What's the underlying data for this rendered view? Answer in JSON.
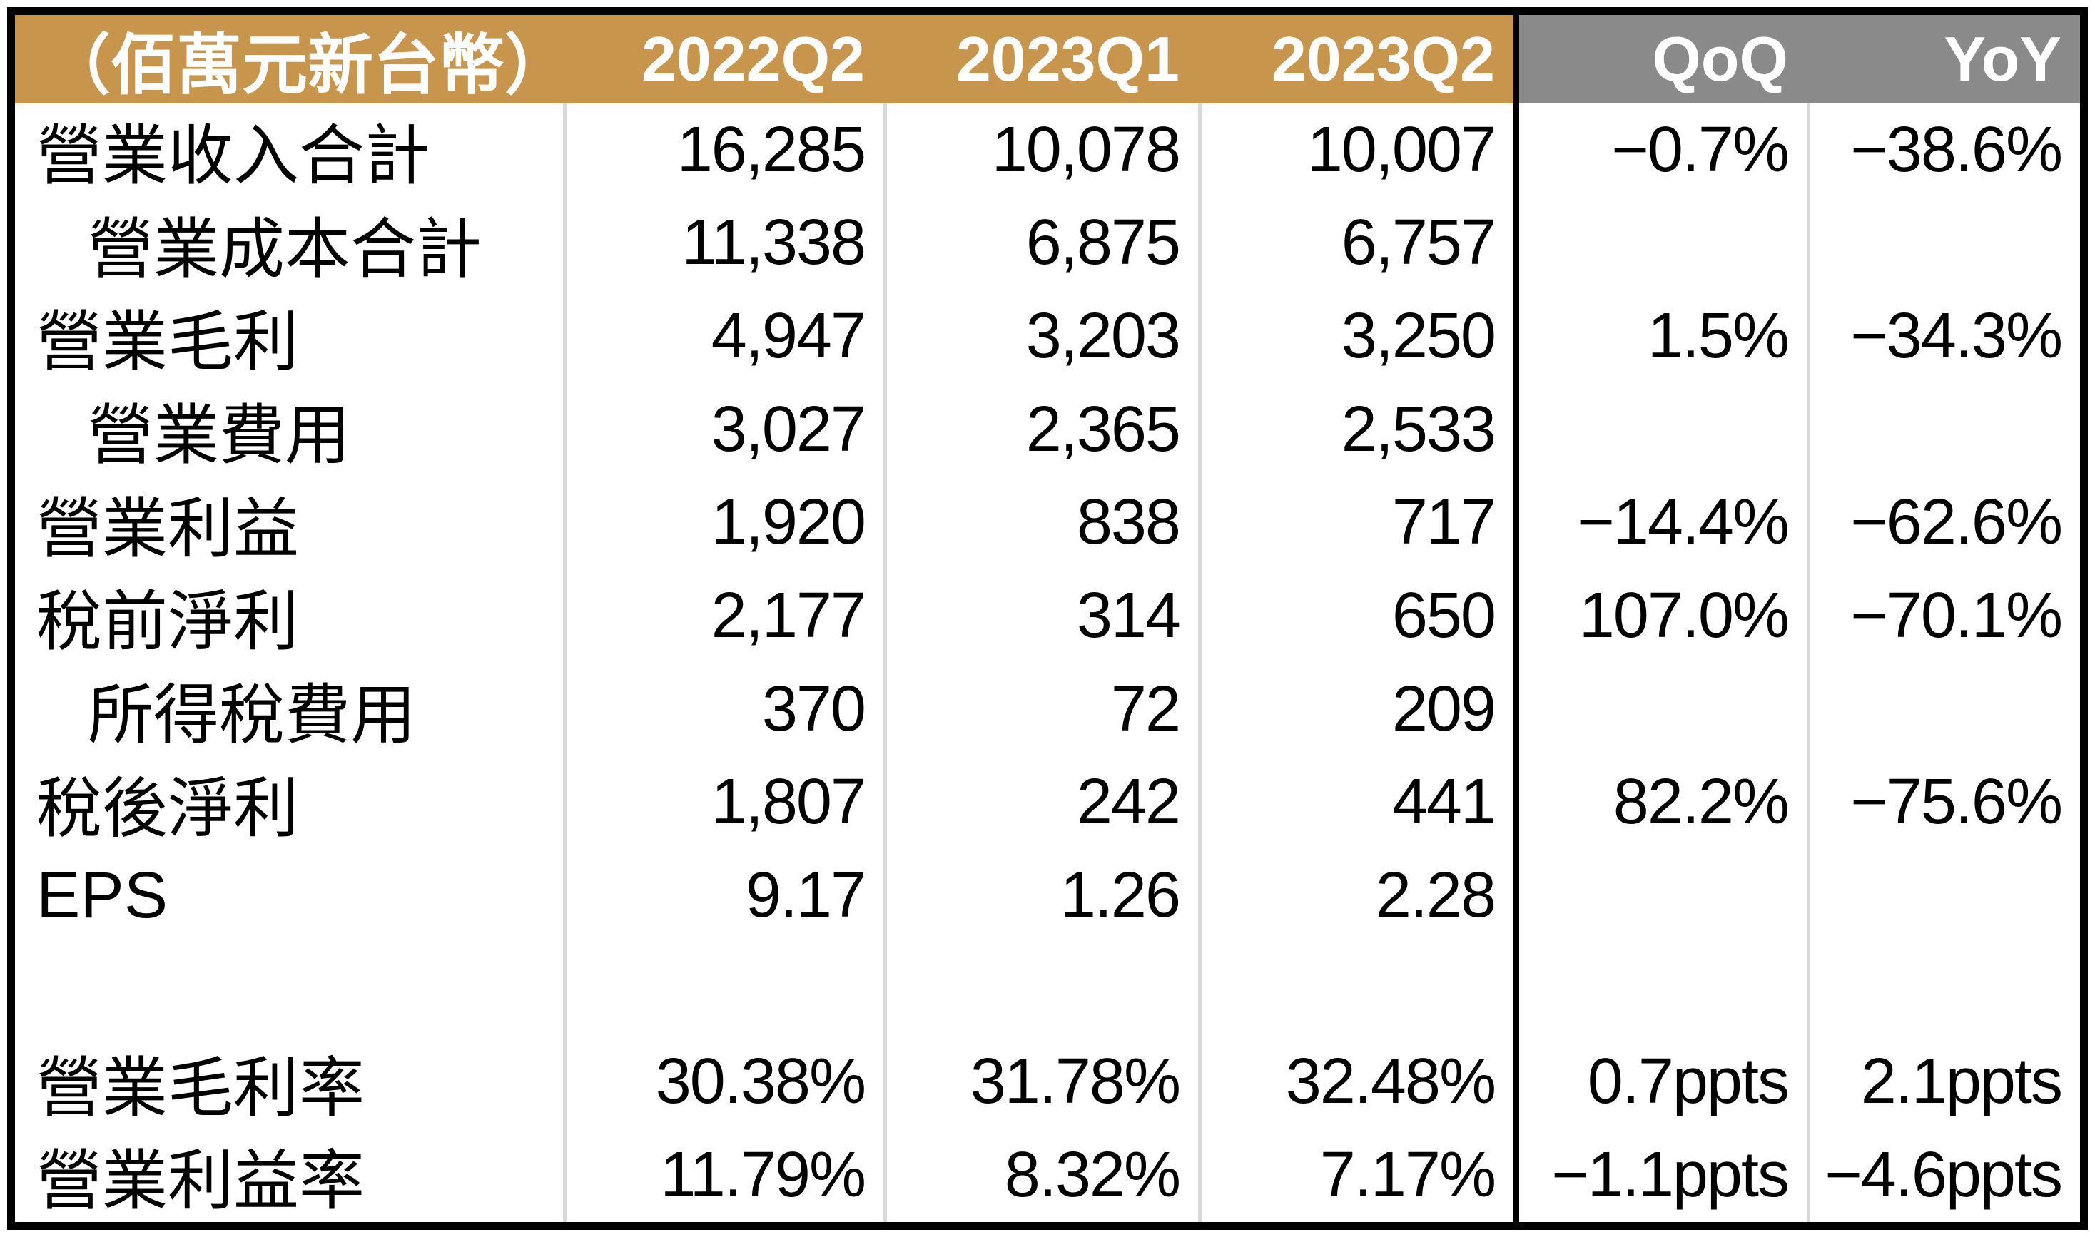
{
  "colors": {
    "header_gold": "#C8954D",
    "header_gray": "#8A8A8A",
    "divider": "#D9D9D9",
    "border": "#000000",
    "header_text": "#FFFFFF",
    "body_text": "#000000",
    "background": "#FFFFFF"
  },
  "chart_data": {
    "type": "table",
    "unit_label": "（佰萬元新台幣）",
    "columns": [
      "2022Q2",
      "2023Q1",
      "2023Q2",
      "QoQ",
      "YoY"
    ],
    "rows": [
      {
        "label": "營業收入合計",
        "indent": false,
        "values": [
          "16,285",
          "10,078",
          "10,007",
          "−0.7%",
          "−38.6%"
        ]
      },
      {
        "label": "營業成本合計",
        "indent": true,
        "values": [
          "11,338",
          "6,875",
          "6,757",
          "",
          ""
        ]
      },
      {
        "label": "營業毛利",
        "indent": false,
        "values": [
          "4,947",
          "3,203",
          "3,250",
          "1.5%",
          "−34.3%"
        ]
      },
      {
        "label": "營業費用",
        "indent": true,
        "values": [
          "3,027",
          "2,365",
          "2,533",
          "",
          ""
        ]
      },
      {
        "label": "營業利益",
        "indent": false,
        "values": [
          "1,920",
          "838",
          "717",
          "−14.4%",
          "−62.6%"
        ]
      },
      {
        "label": "稅前淨利",
        "indent": false,
        "values": [
          "2,177",
          "314",
          "650",
          "107.0%",
          "−70.1%"
        ]
      },
      {
        "label": "所得稅費用",
        "indent": true,
        "values": [
          "370",
          "72",
          "209",
          "",
          ""
        ]
      },
      {
        "label": "稅後淨利",
        "indent": false,
        "values": [
          "1,807",
          "242",
          "441",
          "82.2%",
          "−75.6%"
        ]
      },
      {
        "label": "EPS",
        "indent": false,
        "values": [
          "9.17",
          "1.26",
          "2.28",
          "",
          ""
        ]
      },
      {
        "label": "",
        "indent": false,
        "values": [
          "",
          "",
          "",
          "",
          ""
        ]
      },
      {
        "label": "營業毛利率",
        "indent": false,
        "values": [
          "30.38%",
          "31.78%",
          "32.48%",
          "0.7ppts",
          "2.1ppts"
        ]
      },
      {
        "label": "營業利益率",
        "indent": false,
        "values": [
          "11.79%",
          "8.32%",
          "7.17%",
          "−1.1ppts",
          "−4.6ppts"
        ]
      }
    ]
  }
}
